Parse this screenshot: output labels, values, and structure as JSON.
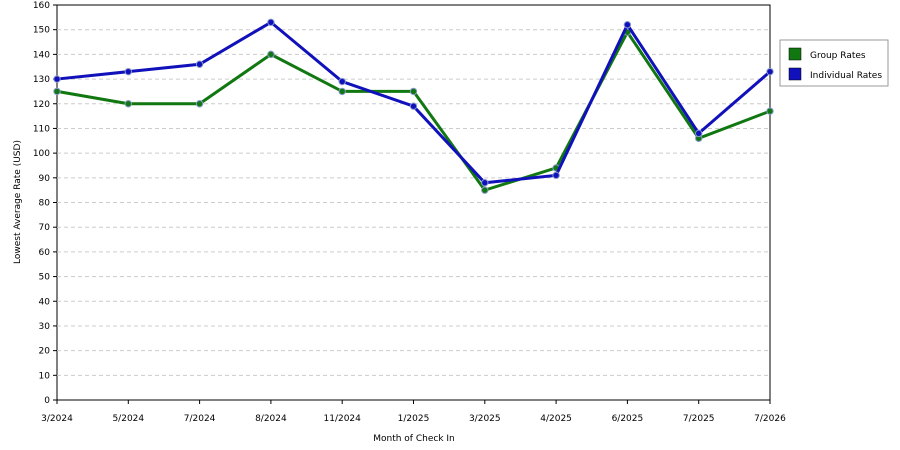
{
  "chart_data": {
    "type": "line",
    "x_label": "Month of Check In",
    "y_label": "Lowest Average Rate (USD)",
    "categories": [
      "3/2024",
      "5/2024",
      "7/2024",
      "8/2024",
      "11/2024",
      "1/2025",
      "3/2025",
      "4/2025",
      "6/2025",
      "7/2025",
      "7/2026"
    ],
    "series": [
      {
        "name": "Group Rates",
        "color": "#117711",
        "values": [
          125,
          120,
          120,
          140,
          125,
          125,
          85,
          94,
          149,
          106,
          117
        ]
      },
      {
        "name": "Individual Rates",
        "color": "#1111bb",
        "values": [
          130,
          133,
          136,
          153,
          129,
          119,
          88,
          91,
          152,
          108,
          133
        ]
      }
    ],
    "ylim": [
      0,
      160
    ],
    "yticks": [
      0,
      10,
      20,
      30,
      40,
      50,
      60,
      70,
      80,
      90,
      100,
      110,
      120,
      130,
      140,
      150,
      160
    ],
    "grid": true,
    "legend": "right"
  }
}
